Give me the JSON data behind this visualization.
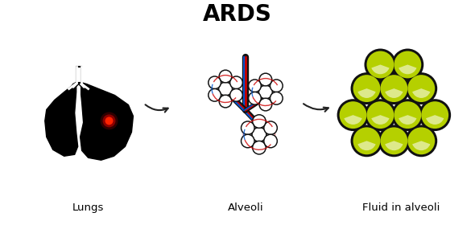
{
  "title": "ARDS",
  "title_fontsize": 20,
  "title_fontweight": "bold",
  "label_lungs": "Lungs",
  "label_alveoli": "Alveoli",
  "label_fluid": "Fluid in alveoli",
  "label_fontsize": 9.5,
  "bg_color": "#ffffff",
  "lung_color": "#000000",
  "spot_color": "#ff0000",
  "spot_glow": "#ff4444",
  "alveolus_fill": "#ffffff",
  "alveolus_edge": "#111111",
  "fluid_fill": "#b5d000",
  "fluid_fill2": "#c8e000",
  "fluid_edge": "#111111",
  "fluid_highlight": "#e8f500",
  "arrow_color": "#222222",
  "vessel_red": "#cc0000",
  "vessel_blue": "#0055cc",
  "vessel_dark": "#111111"
}
